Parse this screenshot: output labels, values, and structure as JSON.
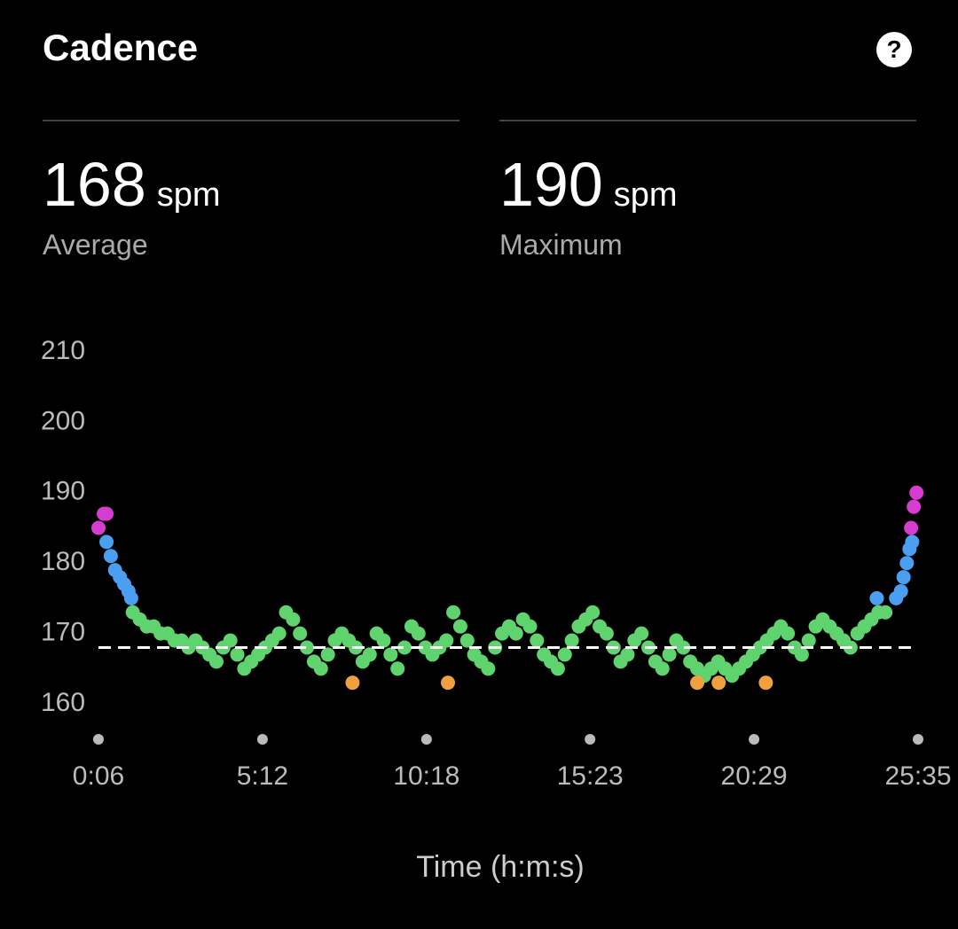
{
  "header": {
    "title": "Cadence",
    "help": "?"
  },
  "chart_data": {
    "type": "scatter",
    "x_label": "Time (h:m:s)",
    "stats": [
      {
        "value": 168,
        "unit": "spm",
        "label": "Average"
      },
      {
        "value": 190,
        "unit": "spm",
        "label": "Maximum"
      }
    ],
    "average_line": true,
    "xlim": [
      6,
      1535
    ],
    "xticks": [
      {
        "value": 6,
        "label": "0:06"
      },
      {
        "value": 312,
        "label": "5:12"
      },
      {
        "value": 618,
        "label": "10:18"
      },
      {
        "value": 923,
        "label": "15:23"
      },
      {
        "value": 1229,
        "label": "20:29"
      },
      {
        "value": 1535,
        "label": "25:35"
      }
    ],
    "ylim": [
      160,
      210
    ],
    "yticks": [
      160,
      170,
      180,
      190,
      200,
      210
    ],
    "series": [
      {
        "color": "#d63ccf",
        "x": [
          6,
          16,
          21,
          1522,
          1527,
          1532
        ],
        "values": [
          185,
          187,
          187,
          185,
          188,
          190
        ]
      },
      {
        "color": "#4a9ff0",
        "x": [
          21,
          29,
          37,
          46,
          54,
          62,
          67,
          1458,
          1494,
          1503,
          1508,
          1514,
          1519,
          1524
        ],
        "values": [
          183,
          181,
          179,
          178,
          177,
          176,
          175,
          175,
          175,
          176,
          178,
          180,
          182,
          183
        ]
      },
      {
        "color": "#5fd36e",
        "x": [
          70,
          83,
          96,
          109,
          122,
          135,
          148,
          161,
          174,
          187,
          200,
          213,
          226,
          239,
          252,
          265,
          278,
          291,
          304,
          317,
          330,
          343,
          356,
          369,
          382,
          395,
          408,
          421,
          434,
          447,
          460,
          473,
          486,
          499,
          512,
          525,
          538,
          551,
          564,
          577,
          590,
          603,
          616,
          629,
          642,
          655,
          668,
          681,
          694,
          707,
          720,
          733,
          746,
          759,
          772,
          785,
          798,
          811,
          824,
          837,
          850,
          863,
          876,
          889,
          902,
          915,
          928,
          941,
          954,
          967,
          980,
          993,
          1006,
          1019,
          1032,
          1045,
          1058,
          1071,
          1084,
          1097,
          1110,
          1123,
          1136,
          1149,
          1162,
          1175,
          1188,
          1201,
          1214,
          1227,
          1240,
          1253,
          1266,
          1279,
          1292,
          1305,
          1318,
          1331,
          1344,
          1357,
          1370,
          1383,
          1396,
          1409,
          1422,
          1435,
          1448,
          1461,
          1474
        ],
        "values": [
          173,
          172,
          171,
          171,
          170,
          170,
          169,
          169,
          168,
          169,
          168,
          167,
          166,
          168,
          169,
          167,
          165,
          166,
          167,
          168,
          169,
          170,
          173,
          172,
          170,
          168,
          166,
          165,
          167,
          169,
          170,
          169,
          168,
          166,
          167,
          170,
          169,
          167,
          165,
          168,
          171,
          170,
          168,
          167,
          168,
          169,
          173,
          171,
          169,
          167,
          166,
          165,
          168,
          170,
          171,
          170,
          172,
          171,
          169,
          167,
          166,
          165,
          167,
          169,
          171,
          172,
          173,
          171,
          170,
          168,
          166,
          167,
          169,
          170,
          168,
          166,
          165,
          167,
          169,
          168,
          166,
          165,
          164,
          165,
          166,
          165,
          164,
          165,
          166,
          167,
          168,
          169,
          170,
          171,
          170,
          168,
          167,
          169,
          171,
          172,
          171,
          170,
          169,
          168,
          170,
          171,
          172,
          173,
          173
        ]
      },
      {
        "color": "#f0a040",
        "x": [
          480,
          658,
          1123,
          1163,
          1251
        ],
        "values": [
          163,
          163,
          163,
          163,
          163
        ]
      }
    ]
  }
}
